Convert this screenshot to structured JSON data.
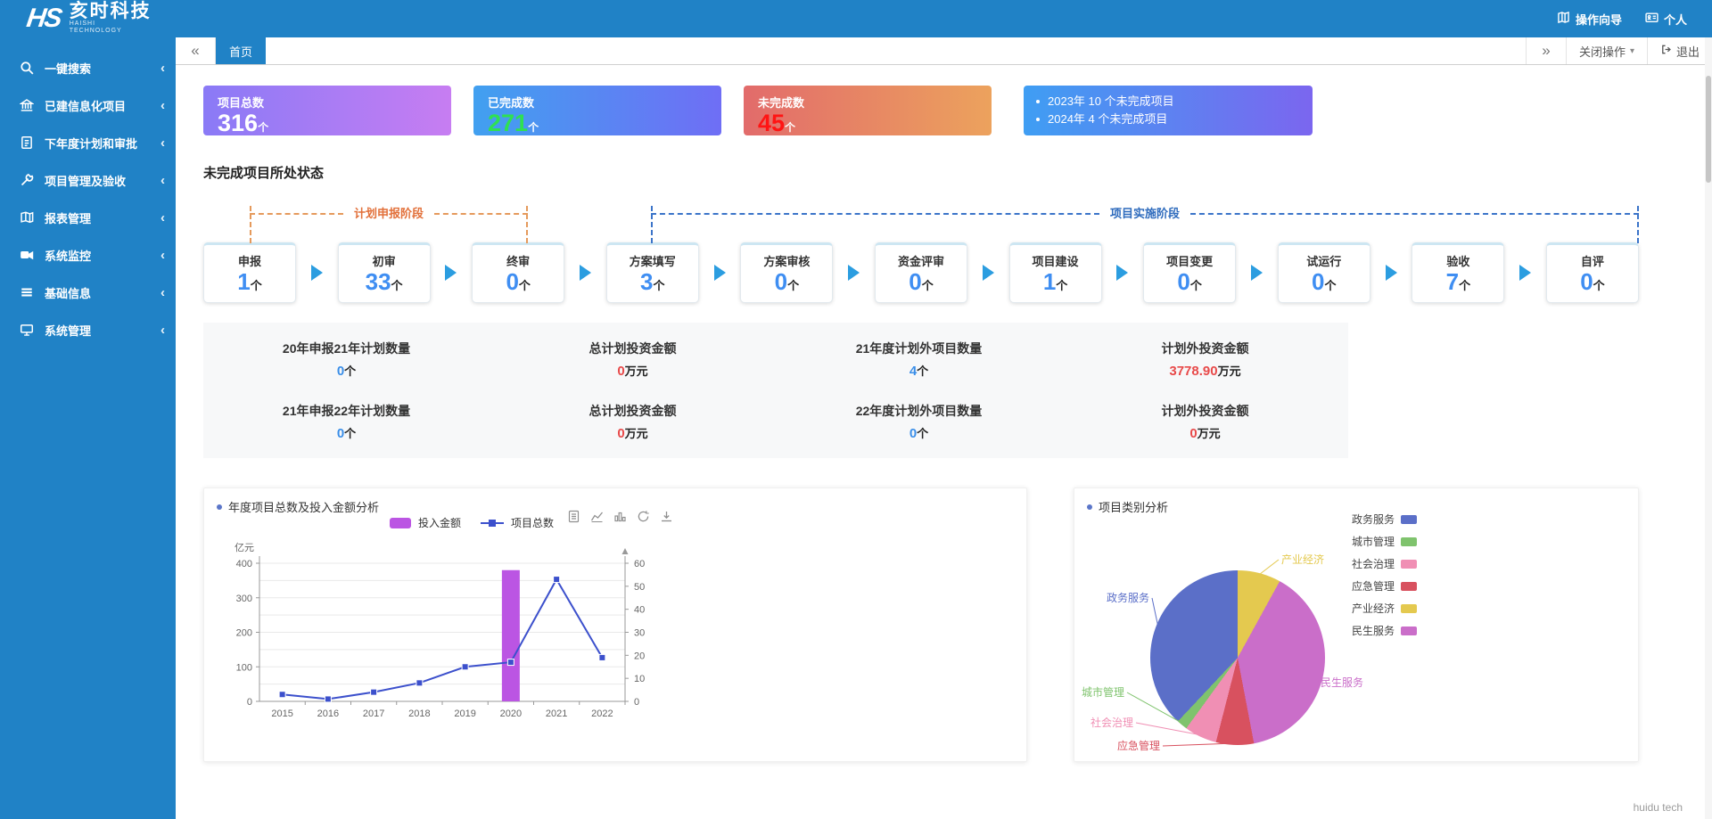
{
  "brand": {
    "mark": "HS",
    "name": "亥时科技",
    "sub1": "HAISHI",
    "sub2": "TECHNOLOGY"
  },
  "topnav": [
    {
      "id": "guide",
      "icon": "map-icon",
      "label": "操作向导"
    },
    {
      "id": "profile",
      "icon": "id-card-icon",
      "label": "个人"
    }
  ],
  "sidebar": {
    "items": [
      {
        "id": "search",
        "icon": "search-icon",
        "label": "一键搜索"
      },
      {
        "id": "built-projects",
        "icon": "bank-icon",
        "label": "已建信息化项目"
      },
      {
        "id": "next-year-plan",
        "icon": "file-icon",
        "label": "下年度计划和审批"
      },
      {
        "id": "project-mgmt",
        "icon": "wrench-icon",
        "label": "项目管理及验收"
      },
      {
        "id": "report-mgmt",
        "icon": "report-icon",
        "label": "报表管理"
      },
      {
        "id": "system-monitor",
        "icon": "camera-icon",
        "label": "系统监控"
      },
      {
        "id": "basic-info",
        "icon": "list-icon",
        "label": "基础信息"
      },
      {
        "id": "system-mgmt",
        "icon": "desktop-icon",
        "label": "系统管理"
      }
    ]
  },
  "tabbar": {
    "active_tab": "首页",
    "close_menu": "关闭操作",
    "logout": "退出"
  },
  "stat_cards": [
    {
      "label": "项目总数",
      "value": "316",
      "unit": "个",
      "value_color": "#ffffff",
      "gradient": [
        "#8a7af6",
        "#c77df2"
      ]
    },
    {
      "label": "已完成数",
      "value": "271",
      "unit": "个",
      "value_color": "#2fe052",
      "gradient": [
        "#41a0f0",
        "#6f6ef5"
      ]
    },
    {
      "label": "未完成数",
      "value": "45",
      "unit": "个",
      "value_color": "#ff1414",
      "gradient": [
        "#e26b6b",
        "#eca25d"
      ]
    }
  ],
  "year_card": {
    "gradient": [
      "#3f9ef3",
      "#7b66ef"
    ],
    "items": [
      "2023年 10 个未完成项目",
      "2024年 4 个未完成项目"
    ]
  },
  "status_section": {
    "title": "未完成项目所处状态",
    "stage1_label": "计划申报阶段",
    "stage2_label": "项目实施阶段",
    "unit": "个",
    "stages": [
      {
        "label": "申报",
        "value": "1"
      },
      {
        "label": "初审",
        "value": "33"
      },
      {
        "label": "终审",
        "value": "0"
      },
      {
        "label": "方案填写",
        "value": "3"
      },
      {
        "label": "方案审核",
        "value": "0"
      },
      {
        "label": "资金评审",
        "value": "0"
      },
      {
        "label": "项目建设",
        "value": "1"
      },
      {
        "label": "项目变更",
        "value": "0"
      },
      {
        "label": "试运行",
        "value": "0"
      },
      {
        "label": "验收",
        "value": "7"
      },
      {
        "label": "自评",
        "value": "0"
      }
    ]
  },
  "summary": {
    "rows": [
      [
        {
          "label": "20年申报21年计划数量",
          "value": "0",
          "unit": "个",
          "color": "#3a8ee8"
        },
        {
          "label": "总计划投资金额",
          "value": "0",
          "unit": "万元",
          "color": "#e84a4a"
        },
        {
          "label": "21年度计划外项目数量",
          "value": "4",
          "unit": "个",
          "color": "#3a8ee8"
        },
        {
          "label": "计划外投资金额",
          "value": "3778.90",
          "unit": "万元",
          "color": "#e84a4a"
        }
      ],
      [
        {
          "label": "21年申报22年计划数量",
          "value": "0",
          "unit": "个",
          "color": "#3a8ee8"
        },
        {
          "label": "总计划投资金额",
          "value": "0",
          "unit": "万元",
          "color": "#e84a4a"
        },
        {
          "label": "22年度计划外项目数量",
          "value": "0",
          "unit": "个",
          "color": "#3a8ee8"
        },
        {
          "label": "计划外投资金额",
          "value": "0",
          "unit": "万元",
          "color": "#e84a4a"
        }
      ]
    ]
  },
  "chart_data": [
    {
      "type": "bar",
      "subtype": "bar+line combo",
      "title": "年度项目总数及投入金额分析",
      "x": [
        "2015",
        "2016",
        "2017",
        "2018",
        "2019",
        "2020",
        "2021",
        "2022"
      ],
      "series": [
        {
          "name": "投入金额",
          "type": "bar",
          "axis": "left",
          "color": "#bb55e3",
          "values": [
            0,
            0,
            0,
            0,
            0,
            380,
            0,
            0
          ]
        },
        {
          "name": "项目总数",
          "type": "line",
          "axis": "right",
          "color": "#3c50cc",
          "values": [
            3,
            1,
            4,
            8,
            15,
            17,
            53,
            19
          ]
        }
      ],
      "left_axis": {
        "unit": "亿元",
        "min": 0,
        "max": 400,
        "ticks": [
          0,
          100,
          200,
          300,
          400
        ]
      },
      "right_axis": {
        "min": 0,
        "max": 60,
        "ticks": [
          0,
          10,
          20,
          30,
          40,
          50,
          60
        ]
      },
      "grid": true,
      "legend_position": "top",
      "toolbar": [
        "data-view",
        "line-chart",
        "bar-chart",
        "restore",
        "download"
      ]
    },
    {
      "type": "pie",
      "title": "项目类别分析",
      "slices": [
        {
          "name": "产业经济",
          "value": 8,
          "color": "#e4c94f"
        },
        {
          "name": "民生服务",
          "value": 39,
          "color": "#ca6ec9"
        },
        {
          "name": "应急管理",
          "value": 7,
          "color": "#d8515f"
        },
        {
          "name": "社会治理",
          "value": 6,
          "color": "#f08fb4"
        },
        {
          "name": "城市管理",
          "value": 2,
          "color": "#7fc36d"
        },
        {
          "name": "政务服务",
          "value": 38,
          "color": "#5b6fc8"
        }
      ],
      "legend": [
        "政务服务",
        "城市管理",
        "社会治理",
        "应急管理",
        "产业经济",
        "民生服务"
      ],
      "legend_position": "right",
      "start_angle": "top"
    }
  ],
  "footer": {
    "text": "huidu tech"
  }
}
